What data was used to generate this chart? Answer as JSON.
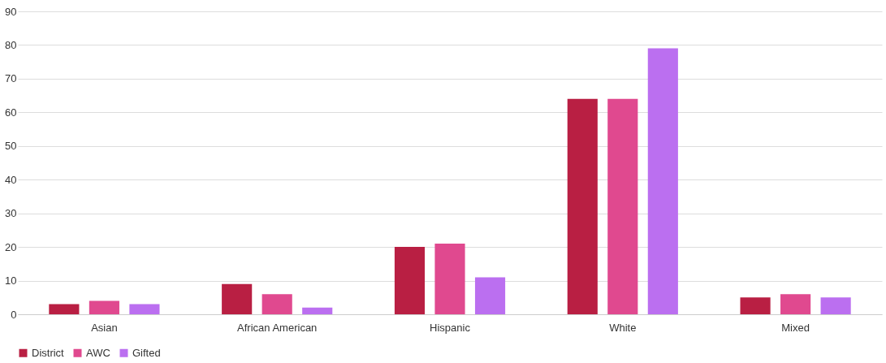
{
  "chart_data": {
    "type": "bar",
    "categories": [
      "Asian",
      "African American",
      "Hispanic",
      "White",
      "Mixed"
    ],
    "series": [
      {
        "name": "District",
        "color": "#b91f43",
        "values": [
          3,
          9,
          20,
          64,
          5
        ]
      },
      {
        "name": "AWC",
        "color": "#e0498f",
        "values": [
          4,
          6,
          21,
          64,
          6
        ]
      },
      {
        "name": "Gifted",
        "color": "#bb6ff0",
        "values": [
          3,
          2,
          11,
          79,
          5
        ]
      }
    ],
    "ylim": [
      0,
      90
    ],
    "yticks": [
      0,
      10,
      20,
      30,
      40,
      50,
      60,
      70,
      80,
      90
    ],
    "grid": "y",
    "legend": "bottom"
  }
}
